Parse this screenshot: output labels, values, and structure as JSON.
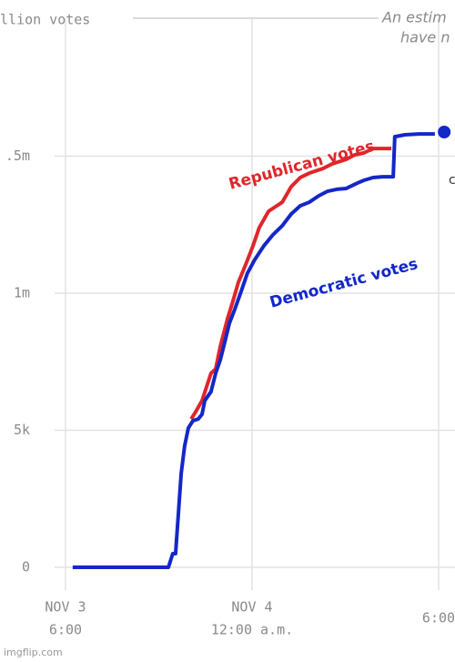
{
  "chart_data": {
    "type": "line",
    "title": "llion votes",
    "annotations": [
      "An estim",
      "have n",
      "c"
    ],
    "line_labels": [
      "Republican votes",
      "Democratic votes"
    ],
    "watermark": "imgflip.com",
    "xlim": [
      -2.107,
      12.527
    ],
    "ylim": [
      0,
      2000000
    ],
    "xticks": [
      {
        "value": 0,
        "label": "6:00",
        "date": "NOV 3"
      },
      {
        "value": 6,
        "label": "12:00 a.m.",
        "date": "NOV 4"
      },
      {
        "value": 12,
        "label": "6:00"
      }
    ],
    "yticks": [
      0,
      {
        "value": 500000,
        "label": "5k"
      },
      {
        "value": 1000000,
        "label": "1m"
      },
      {
        "value": 1500000,
        "label": ".5m"
      }
    ],
    "grid": true,
    "series": [
      {
        "name": "Republican votes",
        "color": "#e0262b",
        "x": [
          4.04,
          4.19,
          4.39,
          4.68,
          4.83,
          4.98,
          5.21,
          5.39,
          5.56,
          5.8,
          6.03,
          6.23,
          6.53,
          6.97,
          7.26,
          7.55,
          7.84,
          8.28,
          8.58,
          9.02,
          9.31,
          9.6,
          9.89,
          10.48
        ],
        "values": [
          541000,
          568000,
          608000,
          708000,
          724000,
          807000,
          907000,
          973000,
          1040000,
          1106000,
          1173000,
          1239000,
          1299000,
          1332000,
          1389000,
          1422000,
          1438000,
          1455000,
          1472000,
          1488000,
          1505000,
          1512000,
          1528000,
          1528000
        ]
      },
      {
        "name": "Democratic votes",
        "color": "#1427c8",
        "x": [
          0.23,
          3.31,
          3.45,
          3.54,
          3.63,
          3.72,
          3.83,
          3.95,
          4.1,
          4.27,
          4.39,
          4.48,
          4.68,
          4.83,
          4.98,
          5.15,
          5.27,
          5.44,
          5.65,
          5.85,
          6.09,
          6.38,
          6.67,
          6.97,
          7.26,
          7.55,
          7.84,
          8.14,
          8.43,
          8.72,
          9.02,
          9.45,
          9.6,
          9.89,
          10.19,
          10.54,
          10.59,
          10.92,
          11.36,
          11.88
        ],
        "values": [
          0,
          0,
          50000,
          50000,
          195000,
          342000,
          442000,
          508000,
          535000,
          541000,
          558000,
          608000,
          641000,
          708000,
          757000,
          834000,
          890000,
          940000,
          1007000,
          1073000,
          1123000,
          1173000,
          1213000,
          1246000,
          1289000,
          1319000,
          1332000,
          1355000,
          1372000,
          1379000,
          1382000,
          1405000,
          1412000,
          1422000,
          1425000,
          1425000,
          1571000,
          1578000,
          1581000,
          1581000
        ]
      }
    ],
    "endpoint": {
      "x": 12.18,
      "value": 1588000,
      "color": "#1427c8"
    }
  }
}
